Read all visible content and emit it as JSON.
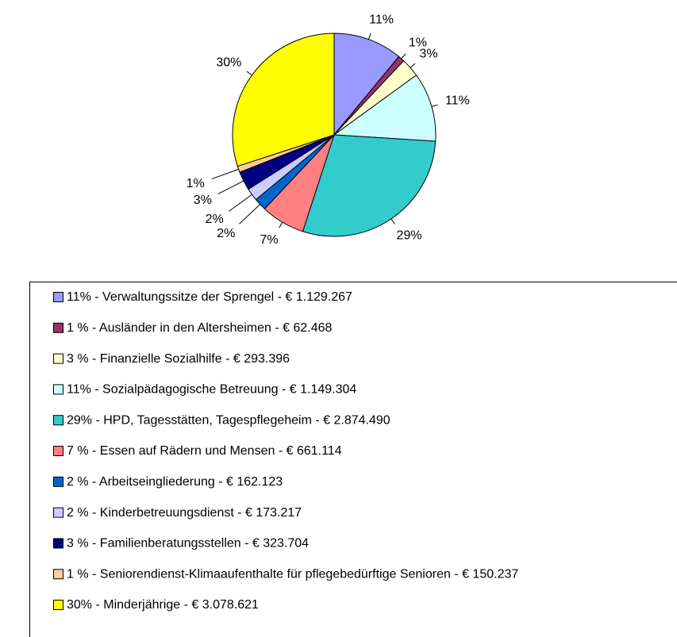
{
  "chart_data": {
    "type": "pie",
    "categories": [
      "11% - Verwaltungssitze der Sprengel - € 1.129.267",
      "1 % - Ausländer in den Altersheimen - € 62.468",
      "3 % - Finanzielle Sozialhilfe - € 293.396",
      "11% - Sozialpädagogische Betreuung - € 1.149.304",
      "29% - HPD, Tagesstätten, Tagespflegeheim - € 2.874.490",
      "7 % - Essen auf Rädern und Mensen - € 661.114",
      "2 % - Arbeitseingliederung - € 162.123",
      "2 % - Kinderbetreuungsdienst - € 173.217",
      "3 % - Familienberatungsstellen - € 323.704",
      "1 % - Seniorendienst-Klimaaufenthalte für pflegebedürftige Senioren - € 150.237",
      "30% - Minderjährige - € 3.078.621"
    ],
    "values": [
      11,
      1,
      3,
      11,
      29,
      7,
      2,
      2,
      3,
      1,
      30
    ],
    "value_labels": [
      "11%",
      "1%",
      "3%",
      "11%",
      "29%",
      "7%",
      "2%",
      "2%",
      "3%",
      "1%",
      "30%"
    ],
    "colors": [
      "#9999ff",
      "#993366",
      "#ffffcc",
      "#ccffff",
      "#33cccc",
      "#ff8080",
      "#0066cc",
      "#ccccff",
      "#000080",
      "#ffcc99",
      "#ffff00"
    ],
    "legend": "bottom"
  }
}
